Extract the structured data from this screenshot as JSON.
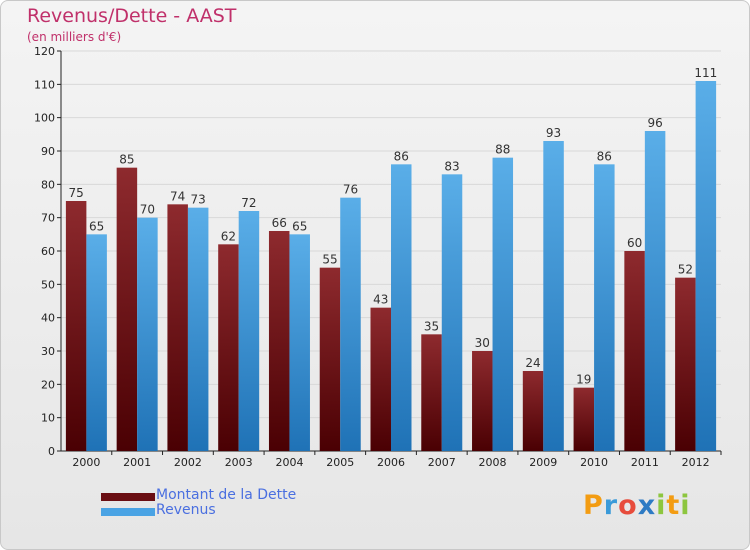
{
  "header": {
    "title": "Revenus/Dette - AAST",
    "subtitle": "(en milliers d'€)"
  },
  "chart_data": {
    "type": "bar",
    "categories": [
      "2000",
      "2001",
      "2002",
      "2003",
      "2004",
      "2005",
      "2006",
      "2007",
      "2008",
      "2009",
      "2010",
      "2011",
      "2012"
    ],
    "series": [
      {
        "name": "Montant de la Dette",
        "color": "#7a1a1e",
        "values": [
          75,
          85,
          74,
          62,
          66,
          55,
          43,
          35,
          30,
          24,
          19,
          60,
          52
        ]
      },
      {
        "name": "Revenus",
        "color": "#4aa3e4",
        "values": [
          65,
          70,
          73,
          72,
          65,
          76,
          86,
          83,
          88,
          93,
          86,
          96,
          111
        ]
      }
    ],
    "ylim": [
      0,
      120
    ],
    "yticks": [
      0,
      10,
      20,
      30,
      40,
      50,
      60,
      70,
      80,
      90,
      100,
      110,
      120
    ],
    "grid": true,
    "legend": "bottom-left"
  },
  "legend": {
    "items": [
      {
        "label": "Montant de la Dette",
        "color": "#6a0e12"
      },
      {
        "label": "Revenus",
        "color": "#4aa3e4"
      }
    ]
  },
  "logo": {
    "letters": [
      "P",
      "r",
      "o",
      "x",
      "i",
      "t",
      "i"
    ],
    "colors": [
      "#f39c12",
      "#3a9ad9",
      "#e74c3c",
      "#2e7bc4",
      "#8dc63f",
      "#f39c12",
      "#8dc63f"
    ]
  }
}
